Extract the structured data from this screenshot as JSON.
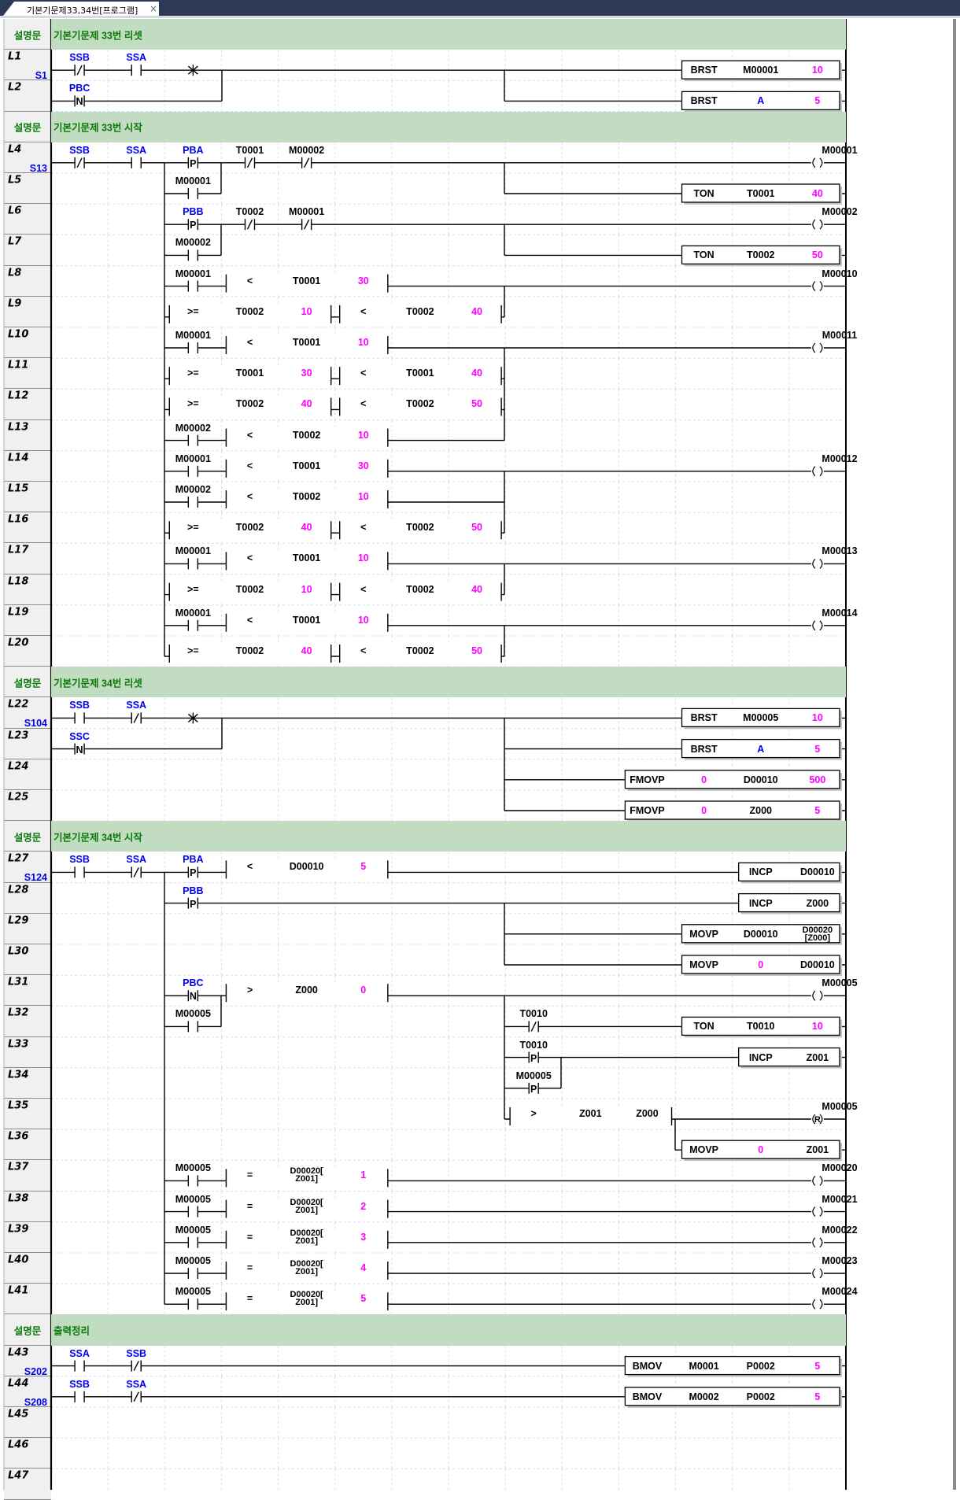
{
  "tab": {
    "title": "기본기문제33,34번[프로그램]",
    "close": "×"
  },
  "comment_label": "설명문",
  "colors": {
    "comment_bg": "#c1dcc1",
    "comment_text": "#0b7a0b",
    "device_blue": "#0000ee",
    "constant_magenta": "#ff00ff",
    "tab_bar": "#2c3a55",
    "gutter": "#f0f0f0"
  },
  "rows": [
    {
      "comment": "기본기문제 33번 리셋"
    },
    {
      "line": "L1",
      "step": "S1"
    },
    {
      "line": "L2"
    },
    {
      "comment": "기본기문제 33번 시작"
    },
    {
      "line": "L4",
      "step": "S13"
    },
    {
      "line": "L5"
    },
    {
      "line": "L6"
    },
    {
      "line": "L7"
    },
    {
      "line": "L8"
    },
    {
      "line": "L9"
    },
    {
      "line": "L10"
    },
    {
      "line": "L11"
    },
    {
      "line": "L12"
    },
    {
      "line": "L13"
    },
    {
      "line": "L14"
    },
    {
      "line": "L15"
    },
    {
      "line": "L16"
    },
    {
      "line": "L17"
    },
    {
      "line": "L18"
    },
    {
      "line": "L19"
    },
    {
      "line": "L20"
    },
    {
      "comment": "기본기문제 34번 리셋"
    },
    {
      "line": "L22",
      "step": "S104"
    },
    {
      "line": "L23"
    },
    {
      "line": "L24"
    },
    {
      "line": "L25"
    },
    {
      "comment": "기본기문제 34번 시작"
    },
    {
      "line": "L27",
      "step": "S124"
    },
    {
      "line": "L28"
    },
    {
      "line": "L29"
    },
    {
      "line": "L30"
    },
    {
      "line": "L31"
    },
    {
      "line": "L32"
    },
    {
      "line": "L33"
    },
    {
      "line": "L34"
    },
    {
      "line": "L35"
    },
    {
      "line": "L36"
    },
    {
      "line": "L37"
    },
    {
      "line": "L38"
    },
    {
      "line": "L39"
    },
    {
      "line": "L40"
    },
    {
      "line": "L41"
    },
    {
      "comment": "출력정리"
    },
    {
      "line": "L43",
      "step": "S202"
    },
    {
      "line": "L44",
      "step": "S208"
    },
    {
      "line": "L45"
    },
    {
      "line": "L46"
    },
    {
      "line": "L47"
    }
  ],
  "elements": [
    {
      "kind": "nc",
      "operand": "SSB"
    },
    {
      "kind": "no",
      "operand": "SSA"
    },
    {
      "kind": "not"
    },
    {
      "kind": "box",
      "cells": [
        "BRST",
        "M00001",
        "10"
      ]
    },
    {
      "kind": "n",
      "operand": "PBC",
      "symbol": "N"
    },
    {
      "kind": "box",
      "cells": [
        "BRST",
        "A",
        "5"
      ]
    },
    {
      "kind": "nc",
      "operand": "SSB"
    },
    {
      "kind": "no",
      "operand": "SSA"
    },
    {
      "kind": "p",
      "operand": "PBA",
      "symbol": "P"
    },
    {
      "kind": "nc",
      "operand": "T0001"
    },
    {
      "kind": "nc",
      "operand": "M00002"
    },
    {
      "kind": "coil",
      "operand": "M00001"
    },
    {
      "kind": "no",
      "operand": "M00001"
    },
    {
      "kind": "box",
      "cells": [
        "TON",
        "T0001",
        "40"
      ]
    },
    {
      "kind": "p",
      "operand": "PBB",
      "symbol": "P"
    },
    {
      "kind": "nc",
      "operand": "T0002"
    },
    {
      "kind": "nc",
      "operand": "M00001"
    },
    {
      "kind": "coil",
      "operand": "M00002"
    },
    {
      "kind": "no",
      "operand": "M00002"
    },
    {
      "kind": "box",
      "cells": [
        "TON",
        "T0002",
        "50"
      ]
    },
    {
      "kind": "no",
      "operand": "M00001"
    },
    {
      "kind": "cmp",
      "op": "<",
      "a": "T0001",
      "b": "30"
    },
    {
      "kind": "coil",
      "operand": "M00010"
    },
    {
      "kind": "cmp",
      "op": ">=",
      "a": "T0002",
      "b": "10"
    },
    {
      "kind": "cmp",
      "op": "<",
      "a": "T0002",
      "b": "40"
    },
    {
      "kind": "no",
      "operand": "M00001"
    },
    {
      "kind": "cmp",
      "op": "<",
      "a": "T0001",
      "b": "10"
    },
    {
      "kind": "coil",
      "operand": "M00011"
    },
    {
      "kind": "cmp",
      "op": ">=",
      "a": "T0001",
      "b": "30"
    },
    {
      "kind": "cmp",
      "op": "<",
      "a": "T0001",
      "b": "40"
    },
    {
      "kind": "cmp",
      "op": ">=",
      "a": "T0002",
      "b": "40"
    },
    {
      "kind": "cmp",
      "op": "<",
      "a": "T0002",
      "b": "50"
    },
    {
      "kind": "no",
      "operand": "M00002"
    },
    {
      "kind": "cmp",
      "op": "<",
      "a": "T0002",
      "b": "10"
    },
    {
      "kind": "no",
      "operand": "M00001"
    },
    {
      "kind": "cmp",
      "op": "<",
      "a": "T0001",
      "b": "30"
    },
    {
      "kind": "coil",
      "operand": "M00012"
    },
    {
      "kind": "no",
      "operand": "M00002"
    },
    {
      "kind": "cmp",
      "op": "<",
      "a": "T0002",
      "b": "10"
    },
    {
      "kind": "cmp",
      "op": ">=",
      "a": "T0002",
      "b": "40"
    },
    {
      "kind": "cmp",
      "op": "<",
      "a": "T0002",
      "b": "50"
    },
    {
      "kind": "no",
      "operand": "M00001"
    },
    {
      "kind": "cmp",
      "op": "<",
      "a": "T0001",
      "b": "10"
    },
    {
      "kind": "coil",
      "operand": "M00013"
    },
    {
      "kind": "cmp",
      "op": ">=",
      "a": "T0002",
      "b": "10"
    },
    {
      "kind": "cmp",
      "op": "<",
      "a": "T0002",
      "b": "40"
    },
    {
      "kind": "no",
      "operand": "M00001"
    },
    {
      "kind": "cmp",
      "op": "<",
      "a": "T0001",
      "b": "10"
    },
    {
      "kind": "coil",
      "operand": "M00014"
    },
    {
      "kind": "cmp",
      "op": ">=",
      "a": "T0002",
      "b": "40"
    },
    {
      "kind": "cmp",
      "op": "<",
      "a": "T0002",
      "b": "50"
    },
    {
      "kind": "no",
      "operand": "SSB"
    },
    {
      "kind": "nc",
      "operand": "SSA"
    },
    {
      "kind": "not"
    },
    {
      "kind": "box",
      "cells": [
        "BRST",
        "M00005",
        "10"
      ]
    },
    {
      "kind": "n",
      "operand": "SSC",
      "symbol": "N"
    },
    {
      "kind": "box",
      "cells": [
        "BRST",
        "A",
        "5"
      ]
    },
    {
      "kind": "box",
      "cells": [
        "FMOVP",
        "0",
        "D00010",
        "500"
      ]
    },
    {
      "kind": "box",
      "cells": [
        "FMOVP",
        "0",
        "Z000",
        "5"
      ]
    },
    {
      "kind": "no",
      "operand": "SSB"
    },
    {
      "kind": "nc",
      "operand": "SSA"
    },
    {
      "kind": "p",
      "operand": "PBA",
      "symbol": "P"
    },
    {
      "kind": "cmp",
      "op": "<",
      "a": "D00010",
      "b": "5"
    },
    {
      "kind": "box",
      "cells": [
        "INCP",
        "D00010"
      ]
    },
    {
      "kind": "p",
      "operand": "PBB",
      "symbol": "P"
    },
    {
      "kind": "box",
      "cells": [
        "INCP",
        "Z000"
      ]
    },
    {
      "kind": "box",
      "cells": [
        "MOVP",
        "D00010",
        "D00020\n[Z000]"
      ]
    },
    {
      "kind": "box",
      "cells": [
        "MOVP",
        "0",
        "D00010"
      ]
    },
    {
      "kind": "n",
      "operand": "PBC",
      "symbol": "N"
    },
    {
      "kind": "cmp",
      "op": ">",
      "a": "Z000",
      "b": "0"
    },
    {
      "kind": "coil",
      "operand": "M00005"
    },
    {
      "kind": "no",
      "operand": "M00005"
    },
    {
      "kind": "nc",
      "operand": "T0010"
    },
    {
      "kind": "box",
      "cells": [
        "TON",
        "T0010",
        "10"
      ]
    },
    {
      "kind": "p",
      "operand": "T0010",
      "symbol": "P"
    },
    {
      "kind": "box",
      "cells": [
        "INCP",
        "Z001"
      ]
    },
    {
      "kind": "p",
      "operand": "M00005",
      "symbol": "P"
    },
    {
      "kind": "cmp",
      "op": ">",
      "a": "Z001",
      "b": "Z000"
    },
    {
      "kind": "reset-coil",
      "operand": "M00005",
      "symbol": "R"
    },
    {
      "kind": "box",
      "cells": [
        "MOVP",
        "0",
        "Z001"
      ]
    },
    {
      "kind": "no",
      "operand": "M00005"
    },
    {
      "kind": "cmp",
      "op": "=",
      "a": "D00020[\nZ001]",
      "b": "1"
    },
    {
      "kind": "coil",
      "operand": "M00020"
    },
    {
      "kind": "no",
      "operand": "M00005"
    },
    {
      "kind": "cmp",
      "op": "=",
      "a": "D00020[\nZ001]",
      "b": "2"
    },
    {
      "kind": "coil",
      "operand": "M00021"
    },
    {
      "kind": "no",
      "operand": "M00005"
    },
    {
      "kind": "cmp",
      "op": "=",
      "a": "D00020[\nZ001]",
      "b": "3"
    },
    {
      "kind": "coil",
      "operand": "M00022"
    },
    {
      "kind": "no",
      "operand": "M00005"
    },
    {
      "kind": "cmp",
      "op": "=",
      "a": "D00020[\nZ001]",
      "b": "4"
    },
    {
      "kind": "coil",
      "operand": "M00023"
    },
    {
      "kind": "no",
      "operand": "M00005"
    },
    {
      "kind": "cmp",
      "op": "=",
      "a": "D00020[\nZ001]",
      "b": "5"
    },
    {
      "kind": "coil",
      "operand": "M00024"
    },
    {
      "kind": "no",
      "operand": "SSA"
    },
    {
      "kind": "nc",
      "operand": "SSB"
    },
    {
      "kind": "box",
      "cells": [
        "BMOV",
        "M0001",
        "P0002",
        "5"
      ]
    },
    {
      "kind": "no",
      "operand": "SSB"
    },
    {
      "kind": "nc",
      "operand": "SSA"
    },
    {
      "kind": "box",
      "cells": [
        "BMOV",
        "M0002",
        "P0002",
        "5"
      ]
    }
  ]
}
